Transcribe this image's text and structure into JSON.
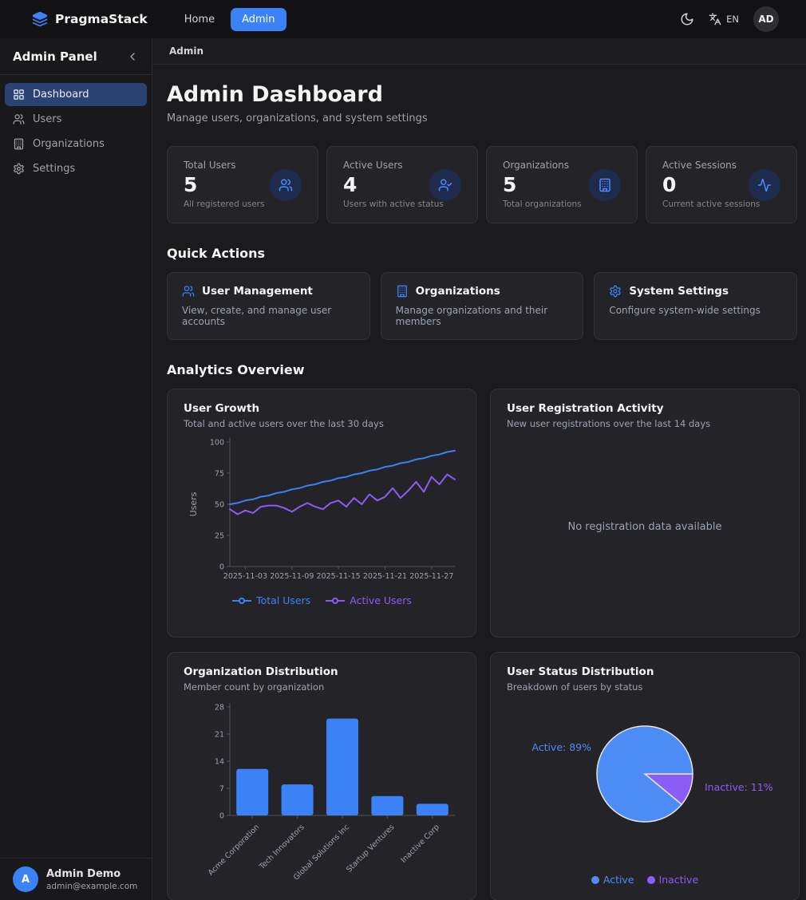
{
  "topbar": {
    "brand": "PragmaStack",
    "nav_home": "Home",
    "nav_admin": "Admin",
    "language": "EN",
    "avatar_initials": "AD"
  },
  "sidebar": {
    "title": "Admin Panel",
    "items": [
      {
        "label": "Dashboard",
        "icon": "layout-grid",
        "active": true
      },
      {
        "label": "Users",
        "icon": "users",
        "active": false
      },
      {
        "label": "Organizations",
        "icon": "building",
        "active": false
      },
      {
        "label": "Settings",
        "icon": "settings",
        "active": false
      }
    ],
    "user": {
      "initial": "A",
      "name": "Admin Demo",
      "email": "admin@example.com"
    }
  },
  "breadcrumb": "Admin",
  "page": {
    "title": "Admin Dashboard",
    "subtitle": "Manage users, organizations, and system settings"
  },
  "stats": [
    {
      "label": "Total Users",
      "value": "5",
      "desc": "All registered users",
      "icon": "users"
    },
    {
      "label": "Active Users",
      "value": "4",
      "desc": "Users with active status",
      "icon": "user-check"
    },
    {
      "label": "Organizations",
      "value": "5",
      "desc": "Total organizations",
      "icon": "building"
    },
    {
      "label": "Active Sessions",
      "value": "0",
      "desc": "Current active sessions",
      "icon": "activity"
    }
  ],
  "quick_actions": {
    "heading": "Quick Actions",
    "cards": [
      {
        "title": "User Management",
        "desc": "View, create, and manage user accounts",
        "icon": "users"
      },
      {
        "title": "Organizations",
        "desc": "Manage organizations and their members",
        "icon": "building"
      },
      {
        "title": "System Settings",
        "desc": "Configure system-wide settings",
        "icon": "settings"
      }
    ]
  },
  "analytics_heading": "Analytics Overview",
  "colors": {
    "accent_blue": "#3b82f6",
    "accent_purple": "#8b5cf6",
    "pie_blue": "#4d8cf6",
    "pie_purple": "#8b5cf6",
    "axis_text": "#9ca3af"
  },
  "chart_data": [
    {
      "type": "line",
      "title": "User Growth",
      "subtitle": "Total and active users over the last 30 days",
      "ylabel": "Users",
      "ylim": [
        0,
        100
      ],
      "yticks": [
        0,
        25,
        50,
        75,
        100
      ],
      "x_days": 30,
      "xtick_days": [
        3,
        9,
        15,
        21,
        27
      ],
      "xtick_labels": [
        "2025-11-03",
        "2025-11-09",
        "2025-11-15",
        "2025-11-21",
        "2025-11-27"
      ],
      "legend_position": "bottom",
      "series": [
        {
          "name": "Total Users",
          "color": "#3b82f6",
          "values": [
            50,
            51,
            53,
            54,
            56,
            57,
            59,
            60,
            62,
            63,
            65,
            66,
            68,
            69,
            71,
            72,
            74,
            75,
            77,
            78,
            80,
            81,
            83,
            84,
            86,
            87,
            89,
            90,
            92,
            93
          ]
        },
        {
          "name": "Active Users",
          "color": "#8b5cf6",
          "values": [
            46,
            42,
            45,
            43,
            48,
            49,
            49,
            47,
            44,
            48,
            51,
            48,
            46,
            51,
            53,
            48,
            55,
            50,
            58,
            53,
            56,
            63,
            55,
            61,
            68,
            60,
            72,
            66,
            74,
            70
          ]
        }
      ]
    },
    {
      "type": "empty",
      "title": "User Registration Activity",
      "subtitle": "New user registrations over the last 14 days",
      "message": "No registration data available"
    },
    {
      "type": "bar",
      "title": "Organization Distribution",
      "subtitle": "Member count by organization",
      "categories": [
        "Acme Corporation",
        "Tech Innovators",
        "Global Solutions Inc",
        "Startup Ventures",
        "Inactive Corp"
      ],
      "values": [
        12,
        8,
        25,
        5,
        3
      ],
      "ylim": [
        0,
        28
      ],
      "yticks": [
        0,
        7,
        14,
        21,
        28
      ],
      "color": "#3b82f6"
    },
    {
      "type": "pie",
      "title": "User Status Distribution",
      "subtitle": "Breakdown of users by status",
      "slices": [
        {
          "label": "Active",
          "pct": 89,
          "color": "#4d8cf6",
          "callout": "Active: 89%"
        },
        {
          "label": "Inactive",
          "pct": 11,
          "color": "#8b5cf6",
          "callout": "Inactive: 11%"
        }
      ],
      "legend": [
        "Active",
        "Inactive"
      ]
    }
  ]
}
